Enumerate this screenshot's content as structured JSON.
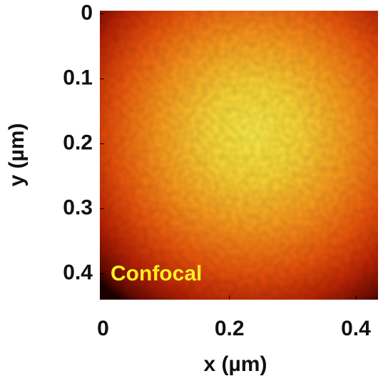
{
  "chart_data": {
    "type": "heatmap",
    "xlabel": "x (µm)",
    "ylabel": "y (µm)",
    "annotation": "Confocal",
    "annotation_color": "#ffee22",
    "xlim": [
      -0.005,
      0.435
    ],
    "xticks": [
      0,
      0.2,
      0.4
    ],
    "ylim": [
      -0.005,
      0.44
    ],
    "yticks": [
      0,
      0.1,
      0.2,
      0.3,
      0.4
    ],
    "colormap": "hot"
  }
}
